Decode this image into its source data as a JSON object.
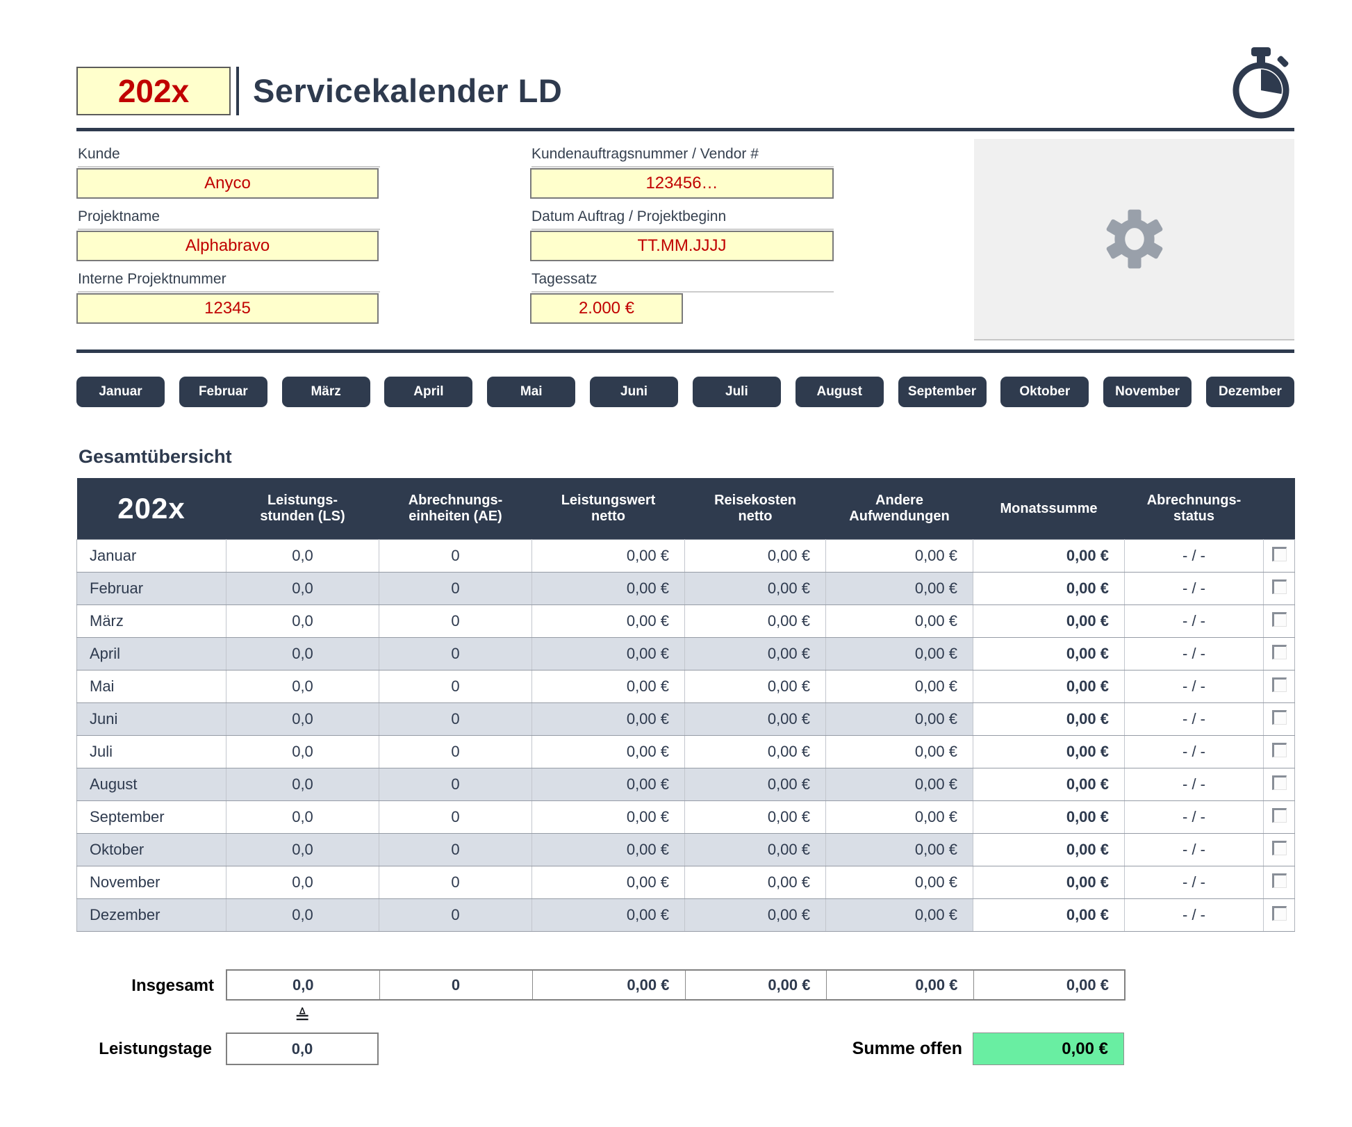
{
  "header": {
    "year_badge": "202x",
    "title": "Servicekalender LD"
  },
  "form": {
    "fields": [
      {
        "label": "Kunde",
        "value": "Anyco"
      },
      {
        "label": "Projektname",
        "value": "Alphabravo"
      },
      {
        "label": "Interne Projektnummer",
        "value": "12345"
      },
      {
        "label": "Kundenauftragsnummer / Vendor #",
        "value": "123456…"
      },
      {
        "label": "Datum Auftrag / Projektbeginn",
        "value": "TT.MM.JJJJ"
      },
      {
        "label": "Tagessatz",
        "value": "2.000 €"
      }
    ]
  },
  "months": [
    "Januar",
    "Februar",
    "März",
    "April",
    "Mai",
    "Juni",
    "Juli",
    "August",
    "September",
    "Oktober",
    "November",
    "Dezember"
  ],
  "overview": {
    "section_title": "Gesamtübersicht",
    "table": {
      "year_header": "202x",
      "columns": [
        "Leistungs-\nstunden (LS)",
        "Abrechnungs-\neinheiten (AE)",
        "Leistungswert\nnetto",
        "Reisekosten\nnetto",
        "Andere\nAufwendungen",
        "Monatssumme",
        "Abrechnungs-\nstatus"
      ],
      "rows": [
        {
          "month": "Januar",
          "ls": "0,0",
          "ae": "0",
          "lw": "0,00 €",
          "rk": "0,00 €",
          "andere": "0,00 €",
          "monatssumme": "0,00 €",
          "status": "- / -",
          "checked": false
        },
        {
          "month": "Februar",
          "ls": "0,0",
          "ae": "0",
          "lw": "0,00 €",
          "rk": "0,00 €",
          "andere": "0,00 €",
          "monatssumme": "0,00 €",
          "status": "- / -",
          "checked": false
        },
        {
          "month": "März",
          "ls": "0,0",
          "ae": "0",
          "lw": "0,00 €",
          "rk": "0,00 €",
          "andere": "0,00 €",
          "monatssumme": "0,00 €",
          "status": "- / -",
          "checked": false
        },
        {
          "month": "April",
          "ls": "0,0",
          "ae": "0",
          "lw": "0,00 €",
          "rk": "0,00 €",
          "andere": "0,00 €",
          "monatssumme": "0,00 €",
          "status": "- / -",
          "checked": false
        },
        {
          "month": "Mai",
          "ls": "0,0",
          "ae": "0",
          "lw": "0,00 €",
          "rk": "0,00 €",
          "andere": "0,00 €",
          "monatssumme": "0,00 €",
          "status": "- / -",
          "checked": false
        },
        {
          "month": "Juni",
          "ls": "0,0",
          "ae": "0",
          "lw": "0,00 €",
          "rk": "0,00 €",
          "andere": "0,00 €",
          "monatssumme": "0,00 €",
          "status": "- / -",
          "checked": false
        },
        {
          "month": "Juli",
          "ls": "0,0",
          "ae": "0",
          "lw": "0,00 €",
          "rk": "0,00 €",
          "andere": "0,00 €",
          "monatssumme": "0,00 €",
          "status": "- / -",
          "checked": false
        },
        {
          "month": "August",
          "ls": "0,0",
          "ae": "0",
          "lw": "0,00 €",
          "rk": "0,00 €",
          "andere": "0,00 €",
          "monatssumme": "0,00 €",
          "status": "- / -",
          "checked": false
        },
        {
          "month": "September",
          "ls": "0,0",
          "ae": "0",
          "lw": "0,00 €",
          "rk": "0,00 €",
          "andere": "0,00 €",
          "monatssumme": "0,00 €",
          "status": "- / -",
          "checked": false
        },
        {
          "month": "Oktober",
          "ls": "0,0",
          "ae": "0",
          "lw": "0,00 €",
          "rk": "0,00 €",
          "andere": "0,00 €",
          "monatssumme": "0,00 €",
          "status": "- / -",
          "checked": false
        },
        {
          "month": "November",
          "ls": "0,0",
          "ae": "0",
          "lw": "0,00 €",
          "rk": "0,00 €",
          "andere": "0,00 €",
          "monatssumme": "0,00 €",
          "status": "- / -",
          "checked": false
        },
        {
          "month": "Dezember",
          "ls": "0,0",
          "ae": "0",
          "lw": "0,00 €",
          "rk": "0,00 €",
          "andere": "0,00 €",
          "monatssumme": "0,00 €",
          "status": "- / -",
          "checked": false
        }
      ],
      "totals_label": "Insgesamt",
      "totals": {
        "ls": "0,0",
        "ae": "0",
        "lw": "0,00 €",
        "rk": "0,00 €",
        "andere": "0,00 €",
        "monatssumme": "0,00 €"
      }
    },
    "leistungstage": {
      "symbol": "≜",
      "label": "Leistungstage",
      "value": "0,0"
    },
    "summe_offen": {
      "label": "Summe offen",
      "value": "0,00 €"
    }
  },
  "colors": {
    "navy": "#2e3a4e",
    "alt_row": "#d9dee6",
    "field_yellow": "#ffffcc",
    "value_red": "#c00000",
    "open_sum_green": "#69eea2",
    "panel_gray": "#f0f0f0"
  }
}
